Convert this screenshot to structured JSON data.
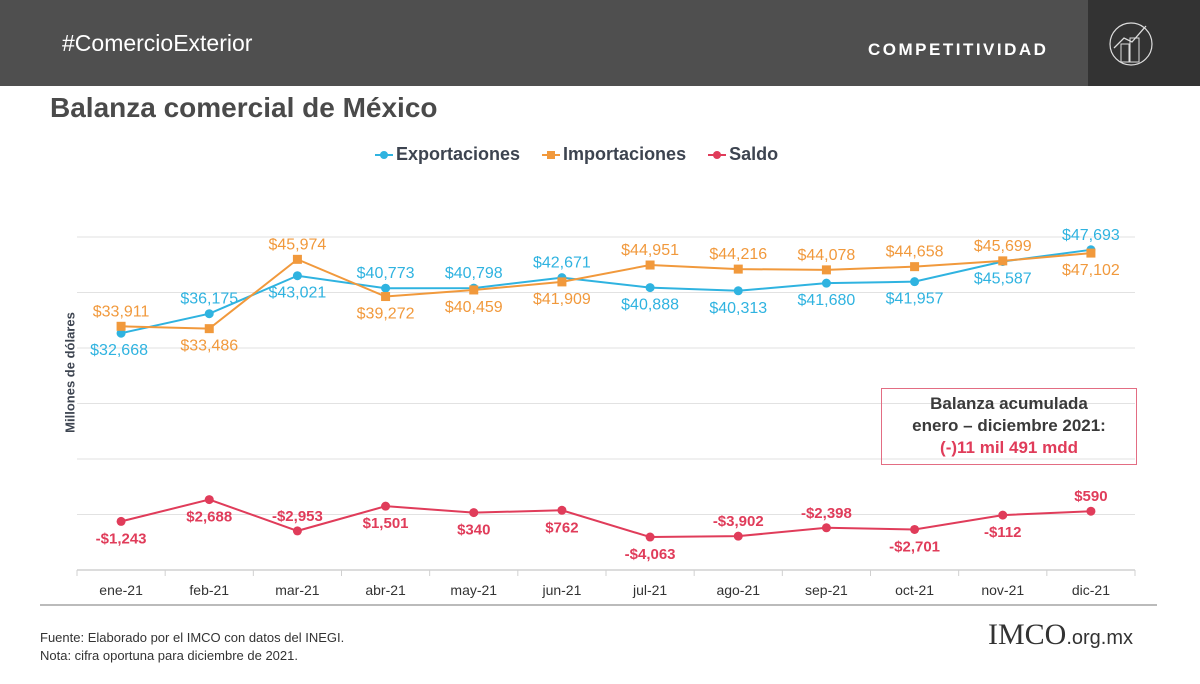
{
  "header": {
    "hashtag": "#ComercioExterior",
    "section": "COMPETITIVIDAD",
    "section_icon": "chart-building-circle-icon"
  },
  "colors": {
    "exportaciones": "#2fb3e0",
    "importaciones": "#f1993c",
    "saldo": "#e03c5a"
  },
  "annotation": {
    "line1": "Balanza acumulada",
    "line2": "enero – diciembre 2021:",
    "value": "(-)11 mil 491 mdd"
  },
  "footer": {
    "source": "Fuente: Elaborado por el IMCO con datos del INEGI.",
    "note": "Nota: cifra oportuna para diciembre de 2021.",
    "logo": "IMCO",
    "logo_domain": ".org.mx"
  },
  "chart_data": {
    "type": "line",
    "title": "Balanza comercial de México",
    "xlabel": "",
    "ylabel": "Millones de dólares",
    "ylim": [
      -10000,
      50000
    ],
    "grid": true,
    "legend": "top",
    "categories": [
      "ene-21",
      "feb-21",
      "mar-21",
      "abr-21",
      "may-21",
      "jun-21",
      "jul-21",
      "ago-21",
      "sep-21",
      "oct-21",
      "nov-21",
      "dic-21"
    ],
    "series": [
      {
        "name": "Exportaciones",
        "values": [
          32668,
          36175,
          43021,
          40773,
          40798,
          42671,
          40888,
          40313,
          41680,
          41957,
          45587,
          47693
        ],
        "labels": [
          "$32,668",
          "$36,175",
          "$43,021",
          "$40,773",
          "$40,798",
          "$42,671",
          "$40,888",
          "$40,313",
          "$41,680",
          "$41,957",
          "$45,587",
          "$47,693"
        ]
      },
      {
        "name": "Importaciones",
        "values": [
          33911,
          33486,
          45974,
          39272,
          40459,
          41909,
          44951,
          44216,
          44078,
          44658,
          45699,
          47102
        ],
        "labels": [
          "$33,911",
          "$33,486",
          "$45,974",
          "$39,272",
          "$40,459",
          "$41,909",
          "$44,951",
          "$44,216",
          "$44,078",
          "$44,658",
          "$45,699",
          "$47,102"
        ]
      },
      {
        "name": "Saldo",
        "values": [
          -1243,
          2688,
          -2953,
          1501,
          340,
          762,
          -4063,
          -3902,
          -2398,
          -2701,
          -112,
          590
        ],
        "labels": [
          "-$1,243",
          "$2,688",
          "-$2,953",
          "$1,501",
          "$340",
          "$762",
          "-$4,063",
          "-$3,902",
          "-$2,398",
          "-$2,701",
          "-$112",
          "$590"
        ]
      }
    ]
  }
}
